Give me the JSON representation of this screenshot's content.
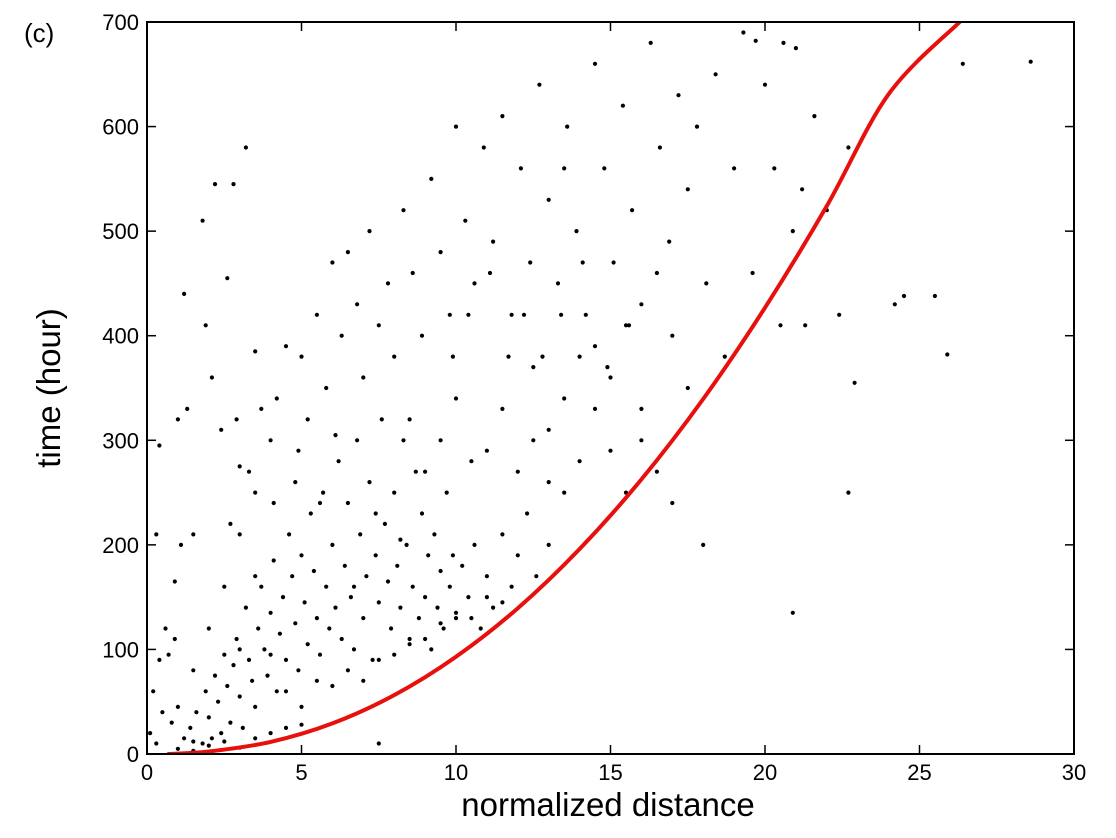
{
  "chart_data": {
    "type": "scatter",
    "panel_label": "(c)",
    "title": "",
    "xlabel": "normalized distance",
    "ylabel": "time (hour)",
    "xlim": [
      0,
      30
    ],
    "ylim": [
      0,
      700
    ],
    "xticks": [
      0,
      5,
      10,
      15,
      20,
      25,
      30
    ],
    "yticks": [
      0,
      100,
      200,
      300,
      400,
      500,
      600,
      700
    ],
    "grid": false,
    "legend": "none",
    "colors": {
      "points": "#000000",
      "curve": "#e8100c",
      "axes": "#000000"
    },
    "series": [
      {
        "type": "scatter",
        "points": [
          [
            0.1,
            20
          ],
          [
            0.2,
            60
          ],
          [
            0.3,
            10
          ],
          [
            0.4,
            90
          ],
          [
            0.5,
            40
          ],
          [
            0.6,
            120
          ],
          [
            0.7,
            95
          ],
          [
            0.8,
            30
          ],
          [
            0.9,
            110
          ],
          [
            1.0,
            45
          ],
          [
            1.0,
            320
          ],
          [
            1.2,
            440
          ],
          [
            1.3,
            330
          ],
          [
            0.4,
            295
          ],
          [
            0.3,
            210
          ],
          [
            1.1,
            200
          ],
          [
            0.9,
            165
          ],
          [
            1.5,
            80
          ],
          [
            1.5,
            210
          ],
          [
            1.8,
            510
          ],
          [
            1.9,
            410
          ],
          [
            2.1,
            360
          ],
          [
            2.2,
            545
          ],
          [
            2.4,
            310
          ],
          [
            2.6,
            455
          ],
          [
            2.8,
            545
          ],
          [
            2.9,
            320
          ],
          [
            3.0,
            275
          ],
          [
            3.2,
            580
          ],
          [
            3.5,
            385
          ],
          [
            1.2,
            15
          ],
          [
            1.4,
            25
          ],
          [
            1.5,
            12
          ],
          [
            1.6,
            40
          ],
          [
            1.8,
            10
          ],
          [
            1.9,
            60
          ],
          [
            2.0,
            35
          ],
          [
            2.1,
            15
          ],
          [
            2.2,
            75
          ],
          [
            2.3,
            50
          ],
          [
            2.4,
            20
          ],
          [
            2.5,
            95
          ],
          [
            2.6,
            65
          ],
          [
            2.7,
            30
          ],
          [
            2.8,
            85
          ],
          [
            2.9,
            110
          ],
          [
            3.0,
            55
          ],
          [
            3.1,
            25
          ],
          [
            3.2,
            140
          ],
          [
            3.3,
            90
          ],
          [
            3.4,
            70
          ],
          [
            3.5,
            45
          ],
          [
            3.6,
            120
          ],
          [
            3.7,
            160
          ],
          [
            3.8,
            100
          ],
          [
            3.9,
            75
          ],
          [
            4.0,
            135
          ],
          [
            4.1,
            185
          ],
          [
            4.2,
            60
          ],
          [
            4.3,
            115
          ],
          [
            4.4,
            150
          ],
          [
            4.5,
            90
          ],
          [
            4.6,
            210
          ],
          [
            4.7,
            170
          ],
          [
            4.8,
            125
          ],
          [
            4.9,
            80
          ],
          [
            5.0,
            190
          ],
          [
            5.1,
            145
          ],
          [
            5.2,
            105
          ],
          [
            5.3,
            230
          ],
          [
            5.4,
            175
          ],
          [
            5.5,
            130
          ],
          [
            5.6,
            95
          ],
          [
            5.7,
            250
          ],
          [
            5.8,
            160
          ],
          [
            5.9,
            120
          ],
          [
            6.0,
            200
          ],
          [
            6.1,
            140
          ],
          [
            6.2,
            280
          ],
          [
            6.3,
            110
          ],
          [
            6.4,
            180
          ],
          [
            6.5,
            240
          ],
          [
            6.6,
            150
          ],
          [
            6.7,
            100
          ],
          [
            6.8,
            300
          ],
          [
            6.9,
            210
          ],
          [
            7.0,
            130
          ],
          [
            7.1,
            170
          ],
          [
            7.2,
            260
          ],
          [
            7.3,
            90
          ],
          [
            7.4,
            190
          ],
          [
            7.5,
            145
          ],
          [
            7.6,
            320
          ],
          [
            7.7,
            220
          ],
          [
            7.8,
            165
          ],
          [
            7.9,
            120
          ],
          [
            8.0,
            250
          ],
          [
            8.1,
            180
          ],
          [
            8.2,
            140
          ],
          [
            8.3,
            300
          ],
          [
            8.4,
            200
          ],
          [
            8.5,
            110
          ],
          [
            8.6,
            160
          ],
          [
            8.7,
            270
          ],
          [
            8.8,
            130
          ],
          [
            8.9,
            230
          ],
          [
            9.0,
            150
          ],
          [
            9.1,
            190
          ],
          [
            9.2,
            100
          ],
          [
            9.3,
            210
          ],
          [
            9.4,
            140
          ],
          [
            9.5,
            175
          ],
          [
            9.6,
            120
          ],
          [
            9.7,
            250
          ],
          [
            9.8,
            160
          ],
          [
            9.9,
            190
          ],
          [
            10.0,
            130
          ],
          [
            10.2,
            180
          ],
          [
            10.4,
            150
          ],
          [
            10.6,
            200
          ],
          [
            10.8,
            120
          ],
          [
            11.0,
            170
          ],
          [
            11.2,
            140
          ],
          [
            11.5,
            210
          ],
          [
            11.8,
            160
          ],
          [
            12.0,
            190
          ],
          [
            12.3,
            230
          ],
          [
            12.6,
            170
          ],
          [
            13.0,
            200
          ],
          [
            13.5,
            250
          ],
          [
            3.0,
            210
          ],
          [
            3.5,
            250
          ],
          [
            4.0,
            300
          ],
          [
            4.2,
            340
          ],
          [
            4.5,
            390
          ],
          [
            4.8,
            260
          ],
          [
            5.0,
            380
          ],
          [
            5.2,
            320
          ],
          [
            5.5,
            420
          ],
          [
            5.8,
            350
          ],
          [
            6.0,
            470
          ],
          [
            6.3,
            400
          ],
          [
            6.5,
            480
          ],
          [
            6.8,
            430
          ],
          [
            7.0,
            360
          ],
          [
            7.2,
            500
          ],
          [
            7.5,
            410
          ],
          [
            7.8,
            450
          ],
          [
            8.0,
            380
          ],
          [
            8.3,
            520
          ],
          [
            8.6,
            460
          ],
          [
            8.9,
            400
          ],
          [
            9.2,
            550
          ],
          [
            9.5,
            480
          ],
          [
            9.8,
            420
          ],
          [
            10.0,
            600
          ],
          [
            10.3,
            510
          ],
          [
            10.6,
            450
          ],
          [
            10.9,
            580
          ],
          [
            11.2,
            490
          ],
          [
            11.5,
            610
          ],
          [
            11.8,
            420
          ],
          [
            12.1,
            560
          ],
          [
            12.4,
            470
          ],
          [
            12.7,
            640
          ],
          [
            13.0,
            530
          ],
          [
            13.3,
            450
          ],
          [
            13.6,
            600
          ],
          [
            13.9,
            500
          ],
          [
            14.2,
            420
          ],
          [
            14.5,
            660
          ],
          [
            14.8,
            560
          ],
          [
            15.1,
            470
          ],
          [
            15.4,
            620
          ],
          [
            15.7,
            520
          ],
          [
            16.0,
            430
          ],
          [
            16.3,
            680
          ],
          [
            16.6,
            580
          ],
          [
            16.9,
            490
          ],
          [
            17.2,
            630
          ],
          [
            17.5,
            540
          ],
          [
            17.8,
            600
          ],
          [
            18.1,
            450
          ],
          [
            18.4,
            650
          ],
          [
            18.7,
            380
          ],
          [
            19.0,
            560
          ],
          [
            19.3,
            690
          ],
          [
            19.6,
            460
          ],
          [
            20.0,
            640
          ],
          [
            20.3,
            560
          ],
          [
            20.6,
            680
          ],
          [
            20.9,
            500
          ],
          [
            21.2,
            540
          ],
          [
            21.6,
            610
          ],
          [
            22.0,
            520
          ],
          [
            22.4,
            420
          ],
          [
            22.7,
            580
          ],
          [
            22.9,
            355
          ],
          [
            22.7,
            250
          ],
          [
            20.9,
            135
          ],
          [
            24.2,
            430
          ],
          [
            24.5,
            438
          ],
          [
            25.5,
            438
          ],
          [
            25.9,
            382
          ],
          [
            26.4,
            660
          ],
          [
            28.6,
            662
          ],
          [
            21.0,
            675
          ],
          [
            19.7,
            682
          ],
          [
            21.3,
            410
          ],
          [
            20.5,
            410
          ],
          [
            13.5,
            560
          ],
          [
            14.0,
            380
          ],
          [
            14.5,
            330
          ],
          [
            15.0,
            290
          ],
          [
            15.5,
            250
          ],
          [
            16.0,
            300
          ],
          [
            16.5,
            270
          ],
          [
            17.0,
            240
          ],
          [
            17.5,
            350
          ],
          [
            18.0,
            200
          ],
          [
            12.5,
            300
          ],
          [
            13.0,
            260
          ],
          [
            13.5,
            340
          ],
          [
            14.0,
            280
          ],
          [
            14.5,
            390
          ],
          [
            15.0,
            360
          ],
          [
            15.5,
            410
          ],
          [
            16.0,
            330
          ],
          [
            16.5,
            460
          ],
          [
            17.0,
            400
          ],
          [
            11.0,
            290
          ],
          [
            11.5,
            330
          ],
          [
            12.0,
            270
          ],
          [
            12.5,
            370
          ],
          [
            13.0,
            310
          ],
          [
            10.5,
            280
          ],
          [
            10.0,
            340
          ],
          [
            9.5,
            300
          ],
          [
            9.0,
            270
          ],
          [
            8.5,
            320
          ],
          [
            2.0,
            120
          ],
          [
            2.5,
            160
          ],
          [
            3.0,
            100
          ],
          [
            3.5,
            170
          ],
          [
            4.0,
            95
          ],
          [
            4.5,
            60
          ],
          [
            5.0,
            45
          ],
          [
            5.5,
            70
          ],
          [
            6.0,
            65
          ],
          [
            6.5,
            80
          ],
          [
            7.0,
            70
          ],
          [
            7.5,
            90
          ],
          [
            8.0,
            95
          ],
          [
            8.5,
            105
          ],
          [
            9.0,
            110
          ],
          [
            9.5,
            125
          ],
          [
            10.0,
            135
          ],
          [
            10.5,
            130
          ],
          [
            11.0,
            150
          ],
          [
            11.5,
            145
          ],
          [
            1.0,
            5
          ],
          [
            1.5,
            3
          ],
          [
            2.0,
            8
          ],
          [
            2.5,
            12
          ],
          [
            3.0,
            6
          ],
          [
            3.5,
            15
          ],
          [
            4.0,
            20
          ],
          [
            4.5,
            25
          ],
          [
            5.0,
            28
          ],
          [
            7.5,
            10
          ],
          [
            6.7,
            160
          ],
          [
            7.4,
            230
          ],
          [
            8.2,
            205
          ],
          [
            6.1,
            305
          ],
          [
            5.6,
            240
          ],
          [
            4.9,
            290
          ],
          [
            4.1,
            240
          ],
          [
            3.7,
            330
          ],
          [
            3.3,
            270
          ],
          [
            2.7,
            220
          ],
          [
            9.9,
            380
          ],
          [
            10.4,
            420
          ],
          [
            11.1,
            460
          ],
          [
            11.7,
            380
          ],
          [
            12.2,
            420
          ],
          [
            12.8,
            380
          ],
          [
            13.4,
            420
          ],
          [
            14.1,
            470
          ],
          [
            14.9,
            370
          ],
          [
            15.6,
            410
          ]
        ]
      },
      {
        "type": "line",
        "x": [
          0.7,
          2,
          4,
          6,
          8,
          10,
          12,
          14,
          16,
          18,
          20,
          22,
          24,
          26.3
        ],
        "y": [
          0,
          2.4,
          11.6,
          29.3,
          56.3,
          93,
          139.4,
          196,
          262.6,
          339.5,
          426.8,
          524,
          631,
          700
        ]
      }
    ]
  }
}
